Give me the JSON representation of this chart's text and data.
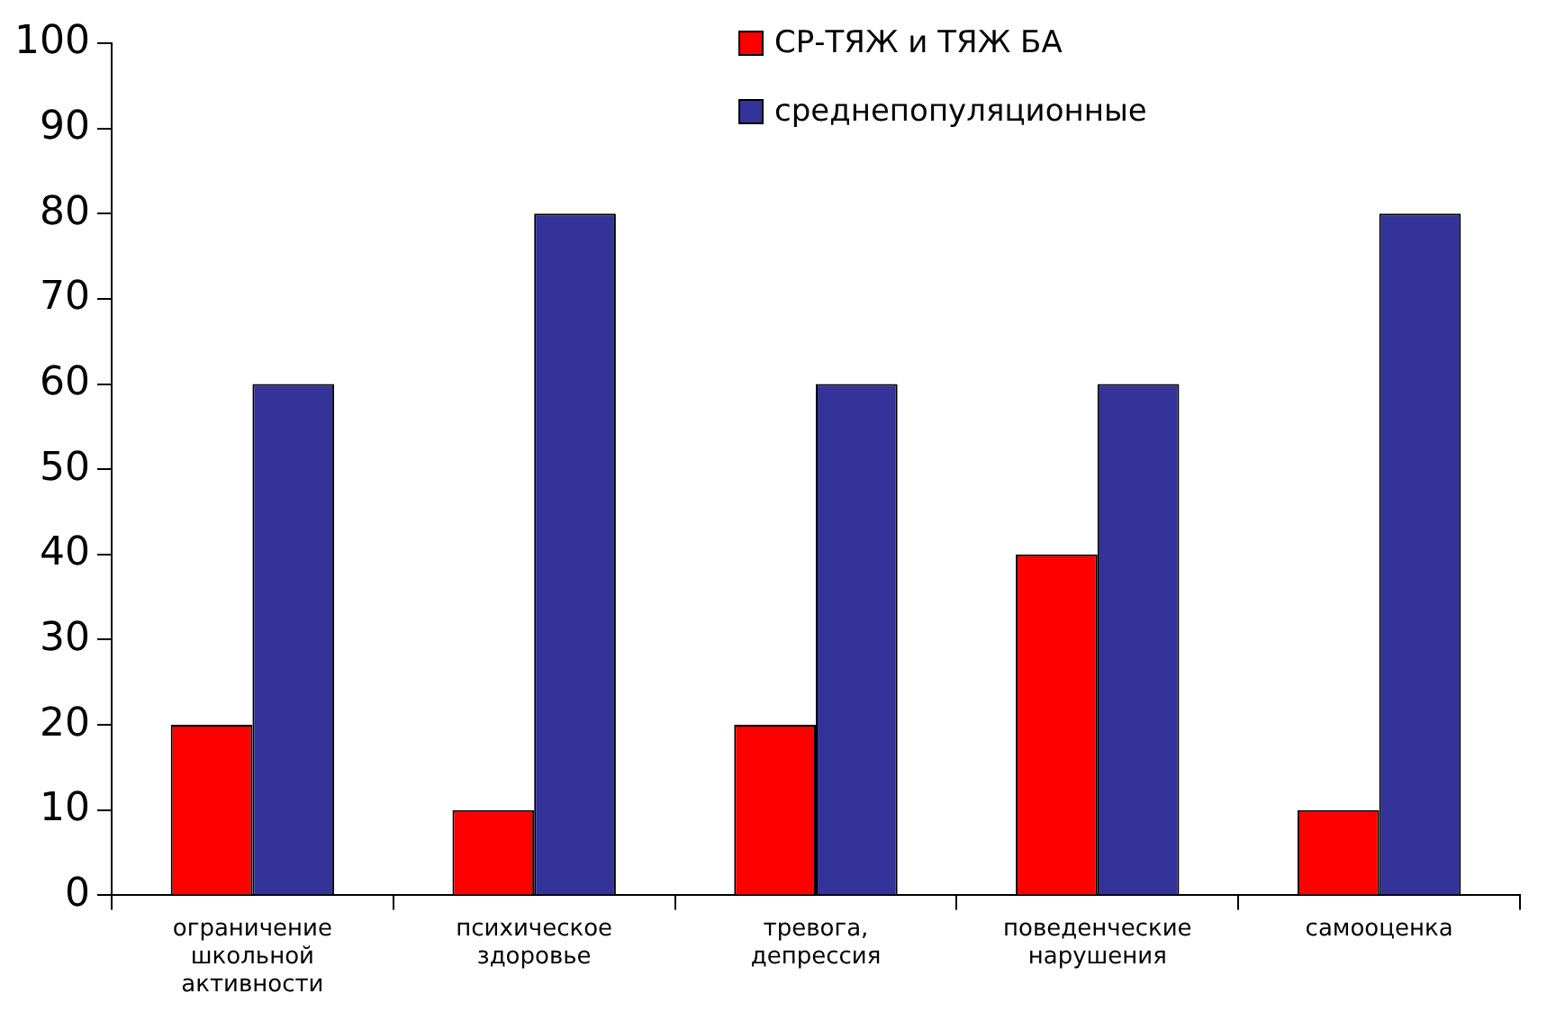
{
  "chart_data": {
    "type": "bar",
    "categories": [
      "ограничение школьной активности",
      "психическое здоровье",
      "тревога, депрессия",
      "поведенческие нарушения",
      "самооценка"
    ],
    "series": [
      {
        "name": "СР-ТЯЖ и ТЯЖ БА",
        "color": "#ff0000",
        "values": [
          20,
          10,
          20,
          40,
          10
        ]
      },
      {
        "name": "среднепопуляционные",
        "color": "#333399",
        "values": [
          60,
          80,
          60,
          60,
          80
        ]
      }
    ],
    "ylim": [
      0,
      100
    ],
    "yticks": [
      0,
      10,
      20,
      30,
      40,
      50,
      60,
      70,
      80,
      90,
      100
    ],
    "grid": false,
    "legend": "top right"
  }
}
